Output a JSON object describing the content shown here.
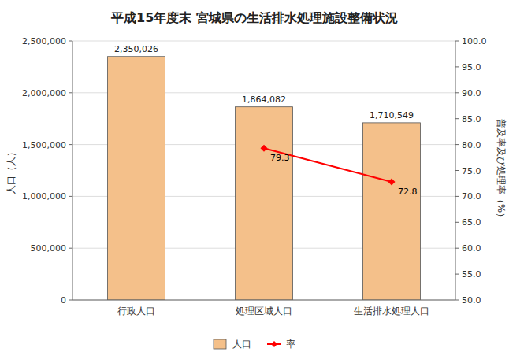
{
  "chart_data": {
    "type": "bar",
    "title": "平成15年度末  宮城県の生活排水処理施設整備状況",
    "categories": [
      "行政人口",
      "処理区域人口",
      "生活排水処理人口"
    ],
    "series": [
      {
        "name": "人口",
        "type": "bar",
        "color": "#F4C08A",
        "values": [
          2350026,
          1864082,
          1710549
        ],
        "value_labels": [
          "2,350,026",
          "1,864,082",
          "1,710,549"
        ]
      },
      {
        "name": "率",
        "type": "line",
        "axis": "y2",
        "color": "#FF0000",
        "marker": "diamond",
        "values": [
          null,
          79.3,
          72.8
        ]
      }
    ],
    "ylabel": "人口（人）",
    "y2label": "普及率及び処理率（%）",
    "ylim": [
      0,
      2500000
    ],
    "yticks": [
      0,
      {
        "value": 500000,
        "label": "500,000"
      },
      {
        "value": 1000000,
        "label": "1,000,000"
      },
      {
        "value": 1500000,
        "label": "1,500,000"
      },
      {
        "value": 2000000,
        "label": "2,000,000"
      },
      {
        "value": 2500000,
        "label": "2,500,000"
      }
    ],
    "y2lim": [
      50.0,
      100.0
    ],
    "y2ticks": [
      {
        "value": 50.0,
        "label": "50.0"
      },
      {
        "value": 55.0,
        "label": "55.0"
      },
      {
        "value": 60.0,
        "label": "60.0"
      },
      {
        "value": 65.0,
        "label": "65.0"
      },
      {
        "value": 70.0,
        "label": "70.0"
      },
      {
        "value": 75.0,
        "label": "75.0"
      },
      {
        "value": 80.0,
        "label": "80.0"
      },
      {
        "value": 85.0,
        "label": "85.0"
      },
      {
        "value": 90.0,
        "label": "90.0"
      },
      {
        "value": 95.0,
        "label": "95.0"
      },
      {
        "value": 100.0,
        "label": "100.0"
      }
    ],
    "grid": true,
    "data_labels": true,
    "legend": "bottom"
  }
}
